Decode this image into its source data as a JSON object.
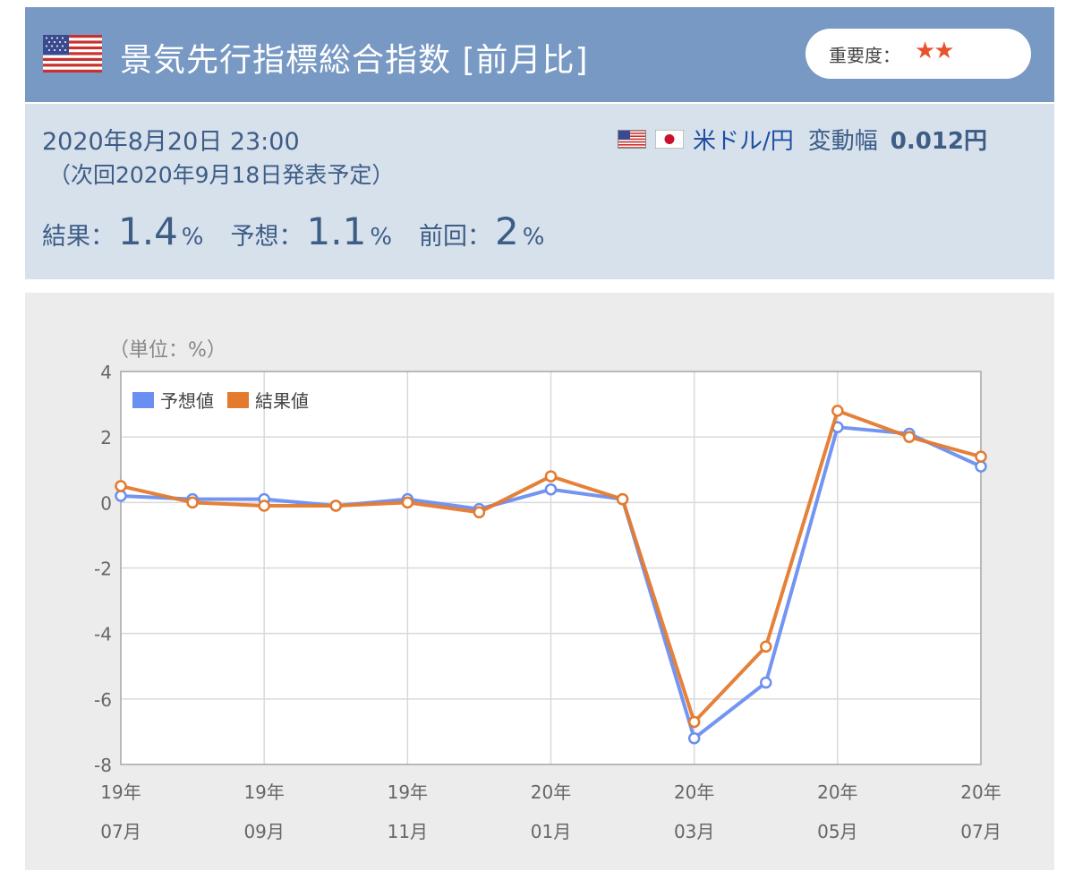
{
  "header": {
    "title": "景気先行指標総合指数 [前月比]",
    "country_flag": "us-flag-icon",
    "importance_label": "重要度：",
    "importance_stars": "★★",
    "colors": {
      "bar": "#7799c4",
      "star": "#e8532f"
    }
  },
  "info": {
    "date": "2020年8月20日 23:00",
    "next_release": "（次回2020年9月18日発表予定）",
    "pair": "米ドル/円",
    "range_label": "変動幅",
    "range_value": "0.012円",
    "result_label": "結果：",
    "result_value": "1.4",
    "result_unit": "%",
    "forecast_label": "予想：",
    "forecast_value": "1.1",
    "forecast_unit": "%",
    "previous_label": "前回：",
    "previous_value": "2",
    "previous_unit": "%"
  },
  "chart_data": {
    "type": "line",
    "unit_label": "（単位：%）",
    "ylim": [
      -8,
      4
    ],
    "yticks": [
      4,
      2,
      0,
      -2,
      -4,
      -6,
      -8
    ],
    "x": [
      "19/07",
      "19/08",
      "19/09",
      "19/10",
      "19/11",
      "19/12",
      "20/01",
      "20/02",
      "20/03",
      "20/04",
      "20/05",
      "20/06",
      "20/07"
    ],
    "xtick_labels": [
      {
        "year": "19年",
        "month": "07月"
      },
      {
        "year": "19年",
        "month": "09月"
      },
      {
        "year": "19年",
        "month": "11月"
      },
      {
        "year": "20年",
        "month": "01月"
      },
      {
        "year": "20年",
        "month": "03月"
      },
      {
        "year": "20年",
        "month": "05月"
      },
      {
        "year": "20年",
        "month": "07月"
      }
    ],
    "legend_position": "top-left",
    "grid": true,
    "series": [
      {
        "name": "予想値",
        "color": "#6b8ff0",
        "values": [
          0.2,
          0.1,
          0.1,
          -0.1,
          0.1,
          -0.2,
          0.4,
          0.1,
          -7.2,
          -5.5,
          2.3,
          2.1,
          1.1
        ]
      },
      {
        "name": "結果値",
        "color": "#e47a2e",
        "values": [
          0.5,
          0.0,
          -0.1,
          -0.1,
          0.0,
          -0.3,
          0.8,
          0.1,
          -6.7,
          -4.4,
          2.8,
          2.0,
          1.4
        ]
      }
    ]
  }
}
